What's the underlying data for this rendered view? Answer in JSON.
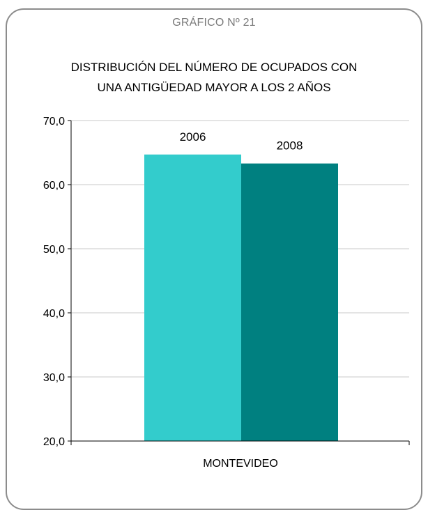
{
  "header": "GRÁFICO Nº 21",
  "chart_data": {
    "type": "bar",
    "title_line1": "DISTRIBUCIÓN DEL NÚMERO DE OCUPADOS  CON",
    "title_line2": "UNA ANTIGÜEDAD MAYOR A LOS 2 AÑOS",
    "categories": [
      "MONTEVIDEO"
    ],
    "series": [
      {
        "name": "2006",
        "values": [
          64.7
        ],
        "color": "#33cccc"
      },
      {
        "name": "2008",
        "values": [
          63.3
        ],
        "color": "#008080"
      }
    ],
    "ylim": [
      20,
      70
    ],
    "yticks": [
      20,
      30,
      40,
      50,
      60,
      70
    ],
    "ytick_labels": [
      "20,0",
      "30,0",
      "40,0",
      "50,0",
      "60,0",
      "70,0"
    ],
    "grid": true,
    "legend": "none"
  }
}
